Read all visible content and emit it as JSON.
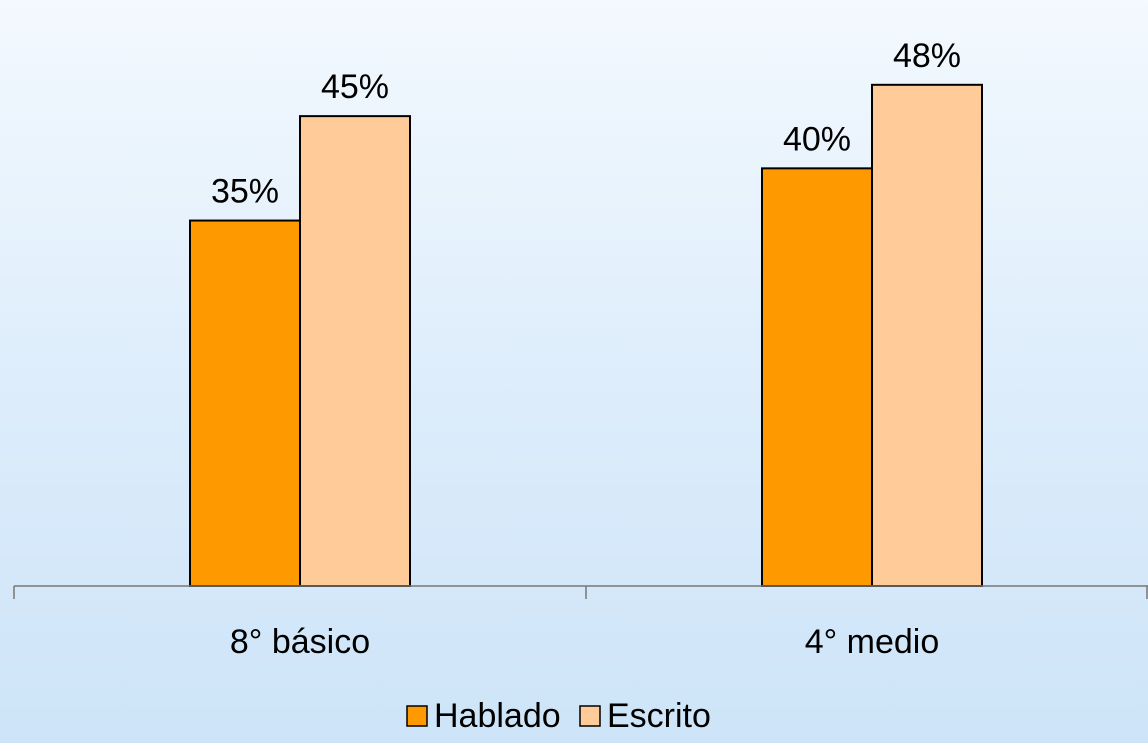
{
  "chart_data": {
    "type": "bar",
    "categories": [
      "8° básico",
      "4° medio"
    ],
    "series": [
      {
        "name": "Hablado",
        "values": [
          35,
          40
        ],
        "labels": [
          "35%",
          "40%"
        ],
        "color": "#ff9900"
      },
      {
        "name": "Escrito",
        "values": [
          45,
          48
        ],
        "labels": [
          "45%",
          "48%"
        ],
        "color": "#ffcc99"
      }
    ],
    "ylim": [
      0,
      55
    ],
    "grid": false,
    "legend_position": "bottom"
  }
}
